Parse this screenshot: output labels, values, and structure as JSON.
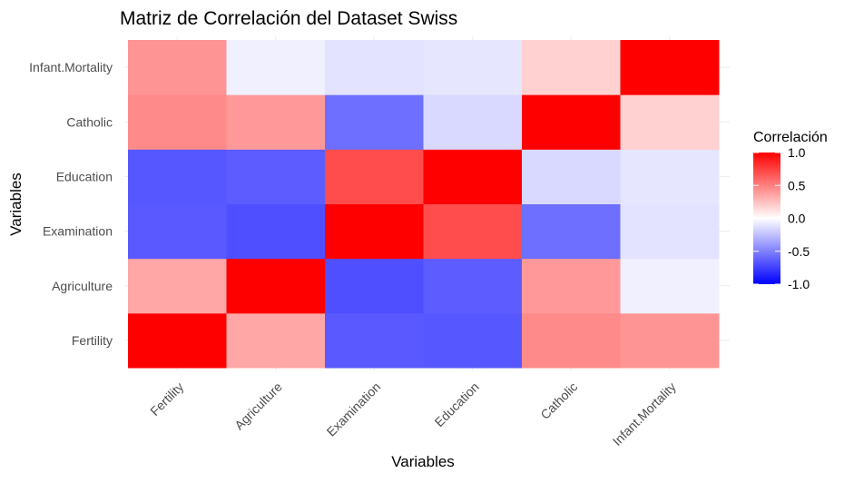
{
  "chart_data": {
    "type": "heatmap",
    "title": "Matriz de Correlación del Dataset Swiss",
    "xlabel": "Variables",
    "ylabel": "Variables",
    "x": [
      "Fertility",
      "Agriculture",
      "Examination",
      "Education",
      "Catholic",
      "Infant.Mortality"
    ],
    "y": [
      "Fertility",
      "Agriculture",
      "Examination",
      "Education",
      "Catholic",
      "Infant.Mortality"
    ],
    "values": [
      [
        1.0,
        0.35,
        -0.65,
        -0.66,
        0.46,
        0.42
      ],
      [
        0.35,
        1.0,
        -0.69,
        -0.64,
        0.4,
        -0.06
      ],
      [
        -0.65,
        -0.69,
        1.0,
        0.7,
        -0.57,
        -0.11
      ],
      [
        -0.66,
        -0.64,
        0.7,
        1.0,
        -0.15,
        -0.1
      ],
      [
        0.46,
        0.4,
        -0.57,
        -0.15,
        1.0,
        0.18
      ],
      [
        0.42,
        -0.06,
        -0.11,
        -0.1,
        0.18,
        1.0
      ]
    ],
    "color_scale": {
      "low": "#0000ff",
      "mid": "#ffffff",
      "high": "#ff0000",
      "limits": [
        -1,
        1
      ]
    },
    "legend": {
      "title": "Correlación",
      "ticks": [
        "1.0",
        "0.5",
        "0.0",
        "-0.5",
        "-1.0"
      ],
      "tick_values": [
        1.0,
        0.5,
        0.0,
        -0.5,
        -1.0
      ],
      "placement": "right"
    },
    "grid": true,
    "grid_color": "#ebebeb"
  }
}
